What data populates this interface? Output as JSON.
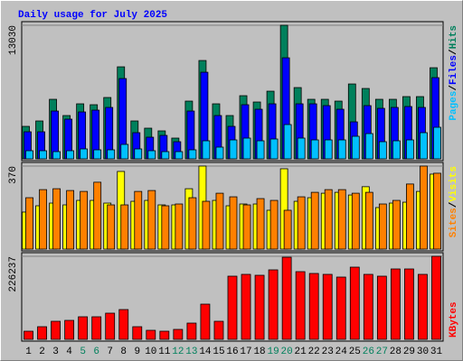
{
  "chart_data": [
    {
      "type": "bar",
      "title": "Daily usage for July 2025",
      "ylim": [
        0,
        13030
      ],
      "yticks": [
        13030
      ],
      "legend_separator": "/",
      "series": [
        {
          "name": "Hits",
          "color": "#00805c",
          "values": [
            3168,
            3696,
            5808,
            4224,
            5368,
            5280,
            5984,
            8976,
            3696,
            2992,
            2728,
            2024,
            5632,
            9592,
            5368,
            4224,
            6160,
            5544,
            6600,
            13030,
            6952,
            5808,
            5808,
            5632,
            7304,
            6864,
            5808,
            5808,
            6072,
            6072,
            8888
          ]
        },
        {
          "name": "Files",
          "color": "#0000ff",
          "values": [
            2640,
            2640,
            4664,
            3872,
            4576,
            4752,
            5016,
            7832,
            2552,
            2112,
            2288,
            1672,
            4664,
            8448,
            4224,
            3168,
            5280,
            4840,
            5368,
            9856,
            5368,
            5368,
            5192,
            4840,
            3608,
            5192,
            4928,
            5016,
            5104,
            5016,
            7920
          ]
        },
        {
          "name": "Pages",
          "color": "#00c0ff",
          "values": [
            792,
            792,
            704,
            792,
            968,
            880,
            880,
            1408,
            968,
            792,
            704,
            704,
            880,
            1760,
            1144,
            1848,
            2024,
            1760,
            1936,
            3344,
            2024,
            1848,
            1848,
            1848,
            2200,
            2464,
            1672,
            1760,
            1848,
            2552,
            3080
          ]
        }
      ]
    },
    {
      "type": "bar",
      "ylim": [
        0,
        370
      ],
      "yticks": [
        370
      ],
      "legend_separator": "/",
      "series": [
        {
          "name": "Visits",
          "color": "#ffff00",
          "values": [
            165,
            193,
            205,
            197,
            217,
            217,
            205,
            346,
            213,
            217,
            197,
            197,
            269,
            370,
            217,
            193,
            201,
            201,
            173,
            358,
            213,
            229,
            249,
            253,
            241,
            278,
            185,
            205,
            209,
            257,
            334
          ]
        },
        {
          "name": "Sites",
          "color": "#ff8000",
          "values": [
            229,
            265,
            269,
            261,
            257,
            298,
            197,
            197,
            257,
            261,
            193,
            201,
            229,
            213,
            249,
            233,
            197,
            225,
            217,
            173,
            233,
            253,
            265,
            265,
            249,
            253,
            201,
            217,
            290,
            370,
            338
          ]
        }
      ]
    },
    {
      "type": "bar",
      "ylim": [
        0,
        226237
      ],
      "yticks": [
        226237
      ],
      "categories": [
        1,
        2,
        3,
        4,
        5,
        6,
        7,
        8,
        9,
        10,
        11,
        12,
        13,
        14,
        15,
        16,
        17,
        18,
        19,
        20,
        21,
        22,
        23,
        24,
        25,
        26,
        27,
        28,
        29,
        30,
        31
      ],
      "category_colors": [
        "#000000",
        "#000000",
        "#000000",
        "#000000",
        "#00805c",
        "#00805c",
        "#000000",
        "#000000",
        "#000000",
        "#000000",
        "#000000",
        "#00805c",
        "#00805c",
        "#000000",
        "#000000",
        "#000000",
        "#000000",
        "#000000",
        "#00805c",
        "#00805c",
        "#000000",
        "#000000",
        "#000000",
        "#000000",
        "#000000",
        "#00805c",
        "#00805c",
        "#000000",
        "#000000",
        "#000000",
        "#000000"
      ],
      "series": [
        {
          "name": "KBytes",
          "color": "#ff0000",
          "values": [
            22131,
            34426,
            49180,
            51639,
            61475,
            61475,
            71311,
            81147,
            34426,
            24590,
            22131,
            27049,
            44262,
            95901,
            49180,
            172130,
            177048,
            174589,
            189343,
            223769,
            184425,
            179507,
            177048,
            169671,
            196720,
            177048,
            172130,
            191802,
            191802,
            177048,
            226237
          ]
        }
      ]
    }
  ]
}
